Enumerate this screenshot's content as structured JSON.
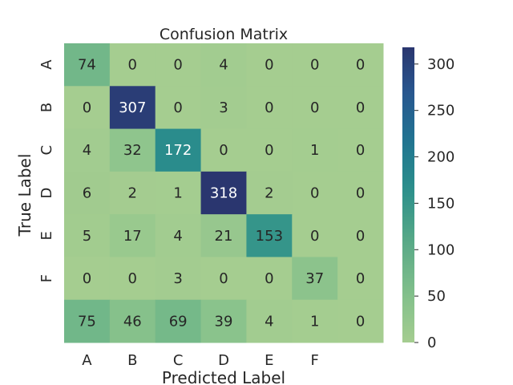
{
  "chart_data": {
    "type": "heatmap",
    "title": "Confusion Matrix",
    "xlabel": "Predicted Label",
    "ylabel": "True Label",
    "x_categories": [
      "A",
      "B",
      "C",
      "D",
      "E",
      "F",
      ""
    ],
    "y_categories": [
      "A",
      "B",
      "C",
      "D",
      "E",
      "F",
      ""
    ],
    "values": [
      [
        74,
        0,
        0,
        4,
        0,
        0,
        0
      ],
      [
        0,
        307,
        0,
        3,
        0,
        0,
        0
      ],
      [
        4,
        32,
        172,
        0,
        0,
        1,
        0
      ],
      [
        6,
        2,
        1,
        318,
        2,
        0,
        0
      ],
      [
        5,
        17,
        4,
        21,
        153,
        0,
        0
      ],
      [
        0,
        0,
        3,
        0,
        0,
        37,
        0
      ],
      [
        75,
        46,
        69,
        39,
        4,
        1,
        0
      ]
    ],
    "colorbar": {
      "min": 0,
      "max": 318,
      "ticks": [
        0,
        50,
        100,
        150,
        200,
        250,
        300
      ],
      "colormap": "crest"
    }
  }
}
